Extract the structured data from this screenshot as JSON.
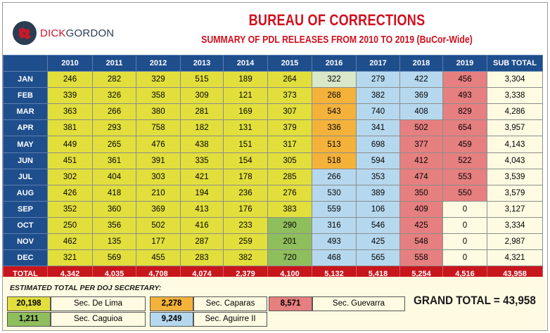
{
  "brand": {
    "part1": "DICK",
    "part2": "GORDON"
  },
  "title": "BUREAU OF CORRECTIONS",
  "subtitle": "SUMMARY OF PDL RELEASES FROM 2010 TO 2019 (BuCor-Wide)",
  "table": {
    "headers": [
      "2010",
      "2011",
      "2012",
      "2013",
      "2014",
      "2015",
      "2016",
      "2017",
      "2018",
      "2019",
      "SUB TOTAL"
    ],
    "rows": [
      {
        "month": "JAN",
        "values": [
          "246",
          "282",
          "329",
          "515",
          "189",
          "264",
          "322",
          "279",
          "422",
          "456",
          "3,304"
        ]
      },
      {
        "month": "FEB",
        "values": [
          "339",
          "326",
          "358",
          "309",
          "121",
          "373",
          "268",
          "382",
          "369",
          "493",
          "3,338"
        ]
      },
      {
        "month": "MAR",
        "values": [
          "363",
          "266",
          "380",
          "281",
          "169",
          "307",
          "543",
          "740",
          "408",
          "829",
          "4,286"
        ]
      },
      {
        "month": "APR",
        "values": [
          "381",
          "293",
          "758",
          "182",
          "131",
          "379",
          "336",
          "341",
          "502",
          "654",
          "3,957"
        ]
      },
      {
        "month": "MAY",
        "values": [
          "449",
          "265",
          "476",
          "438",
          "151",
          "317",
          "513",
          "698",
          "377",
          "459",
          "4,143"
        ]
      },
      {
        "month": "JUN",
        "values": [
          "451",
          "361",
          "391",
          "335",
          "154",
          "305",
          "518",
          "594",
          "412",
          "522",
          "4,043"
        ]
      },
      {
        "month": "JUL",
        "values": [
          "302",
          "404",
          "303",
          "421",
          "178",
          "285",
          "266",
          "353",
          "474",
          "553",
          "3,539"
        ]
      },
      {
        "month": "AUG",
        "values": [
          "426",
          "418",
          "210",
          "194",
          "236",
          "276",
          "530",
          "389",
          "350",
          "550",
          "3,579"
        ]
      },
      {
        "month": "SEP",
        "values": [
          "352",
          "360",
          "369",
          "413",
          "176",
          "383",
          "559",
          "106",
          "409",
          "0",
          "3,127"
        ]
      },
      {
        "month": "OCT",
        "values": [
          "250",
          "356",
          "502",
          "416",
          "233",
          "290",
          "316",
          "546",
          "425",
          "0",
          "3,334"
        ]
      },
      {
        "month": "NOV",
        "values": [
          "462",
          "135",
          "177",
          "287",
          "259",
          "201",
          "493",
          "425",
          "548",
          "0",
          "2,987"
        ]
      },
      {
        "month": "DEC",
        "values": [
          "321",
          "569",
          "455",
          "283",
          "382",
          "720",
          "468",
          "565",
          "558",
          "0",
          "4,321"
        ]
      }
    ],
    "total": {
      "label": "TOTAL",
      "values": [
        "4,342",
        "4,035",
        "4,708",
        "4,074",
        "2,379",
        "4,100",
        "5,132",
        "5,418",
        "5,254",
        "4,516",
        "43,958"
      ]
    }
  },
  "legend": {
    "title": "ESTIMATED TOTAL PER DOJ SECRETARY:",
    "de_lima": {
      "value": "20,198",
      "name": "Sec. De Lima",
      "color": "#e2df3c"
    },
    "caparas": {
      "value": "2,278",
      "name": "Sec. Caparas",
      "color": "#f4b23a"
    },
    "guevarra": {
      "value": "8,571",
      "name": "Sec. Guevarra",
      "color": "#e67f7f"
    },
    "caguioa": {
      "value": "1,211",
      "name": "Sec. Caguioa",
      "color": "#8fbe5c"
    },
    "aguirre": {
      "value": "9,249",
      "name": "Sec. Aguirre II",
      "color": "#b6d8ef"
    }
  },
  "grand_total": "GRAND TOTAL = 43,958",
  "colors": {
    "header_blue": "#1f4e8c",
    "title_red": "#d0101e",
    "total_red": "#c8161d"
  }
}
